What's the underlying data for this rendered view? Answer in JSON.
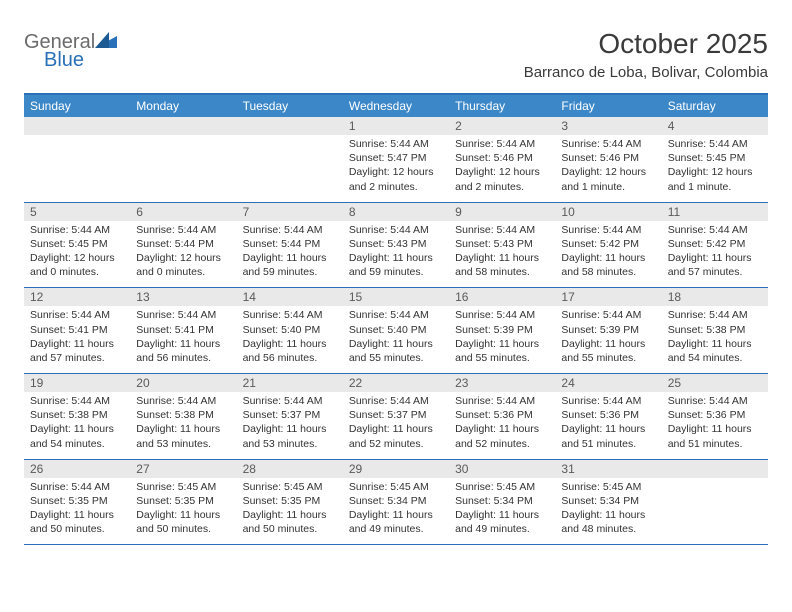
{
  "logo": {
    "line1": "General",
    "line2": "Blue"
  },
  "header": {
    "title": "October 2025",
    "subtitle": "Barranco de Loba, Bolivar, Colombia"
  },
  "colors": {
    "header_bar": "#3b87c8",
    "accent_line": "#2a70b8",
    "daynum_bg": "#e9e9e9",
    "body_text": "#333333",
    "logo_grey": "#6b6b6b",
    "logo_blue": "#2a70b8"
  },
  "days_of_week": [
    "Sunday",
    "Monday",
    "Tuesday",
    "Wednesday",
    "Thursday",
    "Friday",
    "Saturday"
  ],
  "weeks": [
    [
      {
        "num": "",
        "sunrise": "",
        "sunset": "",
        "daylight": ""
      },
      {
        "num": "",
        "sunrise": "",
        "sunset": "",
        "daylight": ""
      },
      {
        "num": "",
        "sunrise": "",
        "sunset": "",
        "daylight": ""
      },
      {
        "num": "1",
        "sunrise": "Sunrise: 5:44 AM",
        "sunset": "Sunset: 5:47 PM",
        "daylight": "Daylight: 12 hours and 2 minutes."
      },
      {
        "num": "2",
        "sunrise": "Sunrise: 5:44 AM",
        "sunset": "Sunset: 5:46 PM",
        "daylight": "Daylight: 12 hours and 2 minutes."
      },
      {
        "num": "3",
        "sunrise": "Sunrise: 5:44 AM",
        "sunset": "Sunset: 5:46 PM",
        "daylight": "Daylight: 12 hours and 1 minute."
      },
      {
        "num": "4",
        "sunrise": "Sunrise: 5:44 AM",
        "sunset": "Sunset: 5:45 PM",
        "daylight": "Daylight: 12 hours and 1 minute."
      }
    ],
    [
      {
        "num": "5",
        "sunrise": "Sunrise: 5:44 AM",
        "sunset": "Sunset: 5:45 PM",
        "daylight": "Daylight: 12 hours and 0 minutes."
      },
      {
        "num": "6",
        "sunrise": "Sunrise: 5:44 AM",
        "sunset": "Sunset: 5:44 PM",
        "daylight": "Daylight: 12 hours and 0 minutes."
      },
      {
        "num": "7",
        "sunrise": "Sunrise: 5:44 AM",
        "sunset": "Sunset: 5:44 PM",
        "daylight": "Daylight: 11 hours and 59 minutes."
      },
      {
        "num": "8",
        "sunrise": "Sunrise: 5:44 AM",
        "sunset": "Sunset: 5:43 PM",
        "daylight": "Daylight: 11 hours and 59 minutes."
      },
      {
        "num": "9",
        "sunrise": "Sunrise: 5:44 AM",
        "sunset": "Sunset: 5:43 PM",
        "daylight": "Daylight: 11 hours and 58 minutes."
      },
      {
        "num": "10",
        "sunrise": "Sunrise: 5:44 AM",
        "sunset": "Sunset: 5:42 PM",
        "daylight": "Daylight: 11 hours and 58 minutes."
      },
      {
        "num": "11",
        "sunrise": "Sunrise: 5:44 AM",
        "sunset": "Sunset: 5:42 PM",
        "daylight": "Daylight: 11 hours and 57 minutes."
      }
    ],
    [
      {
        "num": "12",
        "sunrise": "Sunrise: 5:44 AM",
        "sunset": "Sunset: 5:41 PM",
        "daylight": "Daylight: 11 hours and 57 minutes."
      },
      {
        "num": "13",
        "sunrise": "Sunrise: 5:44 AM",
        "sunset": "Sunset: 5:41 PM",
        "daylight": "Daylight: 11 hours and 56 minutes."
      },
      {
        "num": "14",
        "sunrise": "Sunrise: 5:44 AM",
        "sunset": "Sunset: 5:40 PM",
        "daylight": "Daylight: 11 hours and 56 minutes."
      },
      {
        "num": "15",
        "sunrise": "Sunrise: 5:44 AM",
        "sunset": "Sunset: 5:40 PM",
        "daylight": "Daylight: 11 hours and 55 minutes."
      },
      {
        "num": "16",
        "sunrise": "Sunrise: 5:44 AM",
        "sunset": "Sunset: 5:39 PM",
        "daylight": "Daylight: 11 hours and 55 minutes."
      },
      {
        "num": "17",
        "sunrise": "Sunrise: 5:44 AM",
        "sunset": "Sunset: 5:39 PM",
        "daylight": "Daylight: 11 hours and 55 minutes."
      },
      {
        "num": "18",
        "sunrise": "Sunrise: 5:44 AM",
        "sunset": "Sunset: 5:38 PM",
        "daylight": "Daylight: 11 hours and 54 minutes."
      }
    ],
    [
      {
        "num": "19",
        "sunrise": "Sunrise: 5:44 AM",
        "sunset": "Sunset: 5:38 PM",
        "daylight": "Daylight: 11 hours and 54 minutes."
      },
      {
        "num": "20",
        "sunrise": "Sunrise: 5:44 AM",
        "sunset": "Sunset: 5:38 PM",
        "daylight": "Daylight: 11 hours and 53 minutes."
      },
      {
        "num": "21",
        "sunrise": "Sunrise: 5:44 AM",
        "sunset": "Sunset: 5:37 PM",
        "daylight": "Daylight: 11 hours and 53 minutes."
      },
      {
        "num": "22",
        "sunrise": "Sunrise: 5:44 AM",
        "sunset": "Sunset: 5:37 PM",
        "daylight": "Daylight: 11 hours and 52 minutes."
      },
      {
        "num": "23",
        "sunrise": "Sunrise: 5:44 AM",
        "sunset": "Sunset: 5:36 PM",
        "daylight": "Daylight: 11 hours and 52 minutes."
      },
      {
        "num": "24",
        "sunrise": "Sunrise: 5:44 AM",
        "sunset": "Sunset: 5:36 PM",
        "daylight": "Daylight: 11 hours and 51 minutes."
      },
      {
        "num": "25",
        "sunrise": "Sunrise: 5:44 AM",
        "sunset": "Sunset: 5:36 PM",
        "daylight": "Daylight: 11 hours and 51 minutes."
      }
    ],
    [
      {
        "num": "26",
        "sunrise": "Sunrise: 5:44 AM",
        "sunset": "Sunset: 5:35 PM",
        "daylight": "Daylight: 11 hours and 50 minutes."
      },
      {
        "num": "27",
        "sunrise": "Sunrise: 5:45 AM",
        "sunset": "Sunset: 5:35 PM",
        "daylight": "Daylight: 11 hours and 50 minutes."
      },
      {
        "num": "28",
        "sunrise": "Sunrise: 5:45 AM",
        "sunset": "Sunset: 5:35 PM",
        "daylight": "Daylight: 11 hours and 50 minutes."
      },
      {
        "num": "29",
        "sunrise": "Sunrise: 5:45 AM",
        "sunset": "Sunset: 5:34 PM",
        "daylight": "Daylight: 11 hours and 49 minutes."
      },
      {
        "num": "30",
        "sunrise": "Sunrise: 5:45 AM",
        "sunset": "Sunset: 5:34 PM",
        "daylight": "Daylight: 11 hours and 49 minutes."
      },
      {
        "num": "31",
        "sunrise": "Sunrise: 5:45 AM",
        "sunset": "Sunset: 5:34 PM",
        "daylight": "Daylight: 11 hours and 48 minutes."
      },
      {
        "num": "",
        "sunrise": "",
        "sunset": "",
        "daylight": ""
      }
    ]
  ]
}
